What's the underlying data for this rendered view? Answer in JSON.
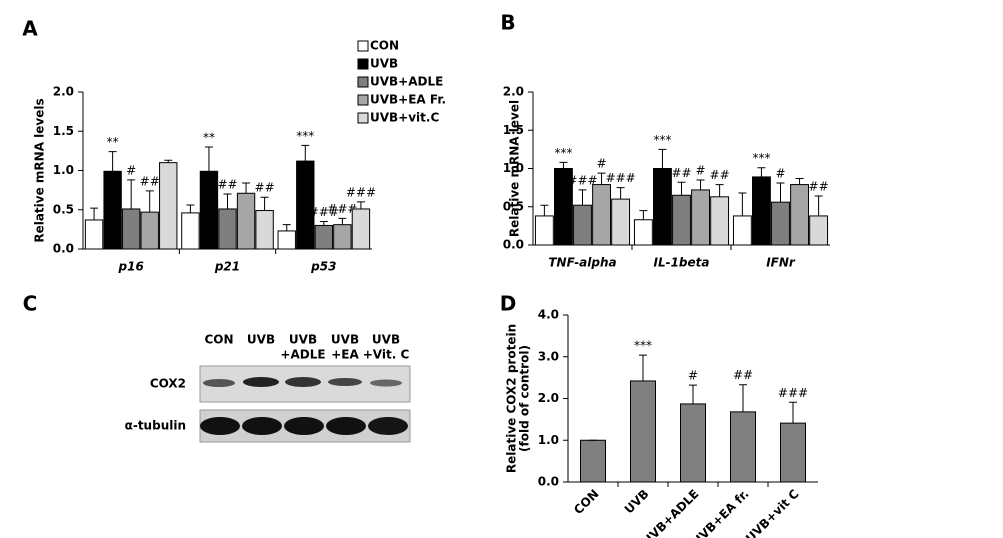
{
  "chart_data": [
    {
      "type": "bar",
      "panel": "A",
      "ylabel": "Relative mRNA levels",
      "categories": [
        "p16",
        "p21",
        "p53"
      ],
      "ylim": [
        0,
        2
      ],
      "yticks": [
        {
          "value": 0,
          "label": "0.0"
        },
        0.5,
        {
          "value": 1,
          "label": "1.0"
        },
        1.5,
        {
          "value": 2,
          "label": "2.0"
        }
      ],
      "grid": false,
      "legend": "top-right",
      "series": [
        {
          "name": "CON",
          "color": "#ffffff",
          "values": [
            0.37,
            0.46,
            0.23
          ],
          "errors": [
            0.15,
            0.1,
            0.08
          ],
          "annotations": [
            null,
            null,
            null
          ]
        },
        {
          "name": "UVB",
          "color": "#000000",
          "values": [
            0.99,
            0.99,
            1.12
          ],
          "errors": [
            0.25,
            0.31,
            0.2
          ],
          "annotations": [
            "**",
            "**",
            "***"
          ]
        },
        {
          "name": "UVB+ADLE",
          "color": "#7f7f7f",
          "values": [
            0.51,
            0.51,
            0.3
          ],
          "errors": [
            0.37,
            0.19,
            0.05
          ],
          "annotations": [
            "#",
            "##",
            "###"
          ]
        },
        {
          "name": "UVB+EA Fr.",
          "color": "#a6a6a6",
          "values": [
            0.47,
            0.71,
            0.31
          ],
          "errors": [
            0.27,
            0.13,
            0.08
          ],
          "annotations": [
            "##",
            null,
            "###"
          ]
        },
        {
          "name": "UVB+vit.C",
          "color": "#d9d9d9",
          "values": [
            1.1,
            0.49,
            0.51
          ],
          "errors": [
            0.03,
            0.17,
            0.09
          ],
          "annotations": [
            null,
            "##",
            "###"
          ]
        }
      ]
    },
    {
      "type": "bar",
      "panel": "B",
      "ylabel": "Relative mRNA level",
      "categories": [
        "TNF-alpha",
        "IL-1beta",
        "IFNr"
      ],
      "ylim": [
        0,
        2
      ],
      "yticks": [
        {
          "value": 0,
          "label": "0.0"
        },
        0.5,
        {
          "value": 1,
          "label": "1.0"
        },
        1.5,
        {
          "value": 2,
          "label": "2.0"
        }
      ],
      "grid": false,
      "series": [
        {
          "color": "#ffffff",
          "values": [
            0.38,
            0.33,
            0.38
          ],
          "errors": [
            0.14,
            0.12,
            0.3
          ],
          "annotations": [
            null,
            null,
            null
          ]
        },
        {
          "color": "#000000",
          "values": [
            1.0,
            1.0,
            0.89
          ],
          "errors": [
            0.08,
            0.25,
            0.12
          ],
          "annotations": [
            "***",
            "***",
            "***"
          ]
        },
        {
          "color": "#7f7f7f",
          "values": [
            0.52,
            0.65,
            0.56
          ],
          "errors": [
            0.2,
            0.17,
            0.25
          ],
          "annotations": [
            "###",
            "##",
            "#"
          ]
        },
        {
          "color": "#a6a6a6",
          "values": [
            0.79,
            0.72,
            0.79
          ],
          "errors": [
            0.15,
            0.13,
            0.08
          ],
          "annotations": [
            "#",
            "#",
            null
          ]
        },
        {
          "color": "#d9d9d9",
          "values": [
            0.6,
            0.63,
            0.38
          ],
          "errors": [
            0.15,
            0.16,
            0.26
          ],
          "annotations": [
            "###",
            "##",
            "##"
          ]
        }
      ]
    },
    {
      "type": "bar",
      "panel": "D",
      "ylabel": [
        "Relative COX2 protein",
        "(fold of control)"
      ],
      "categories": [
        "CON",
        "UVB",
        "UVB+ADLE",
        "UVB+EA fr.",
        "UVB+vit C"
      ],
      "ylim": [
        0,
        4
      ],
      "yticks": [
        {
          "value": 0,
          "label": "0.0"
        },
        {
          "value": 1,
          "label": "1.0"
        },
        {
          "value": 2,
          "label": "2.0"
        },
        {
          "value": 3,
          "label": "3.0"
        },
        {
          "value": 4,
          "label": "4.0"
        }
      ],
      "grid": false,
      "series": [
        {
          "color": "#808080",
          "values": [
            1.0,
            2.42,
            1.87,
            1.68,
            1.41
          ],
          "errors": [
            0,
            0.62,
            0.45,
            0.65,
            0.5
          ],
          "annotations": [
            null,
            "***",
            "#",
            "##",
            "###"
          ]
        }
      ]
    }
  ],
  "blot": {
    "panel": "C",
    "lanes": [
      [
        "CON"
      ],
      [
        "UVB"
      ],
      [
        "UVB",
        "+ADLE"
      ],
      [
        "UVB",
        "+EA"
      ],
      [
        "UVB",
        "+Vit. C"
      ]
    ],
    "rows": [
      "COX2",
      "α-tubulin"
    ]
  }
}
